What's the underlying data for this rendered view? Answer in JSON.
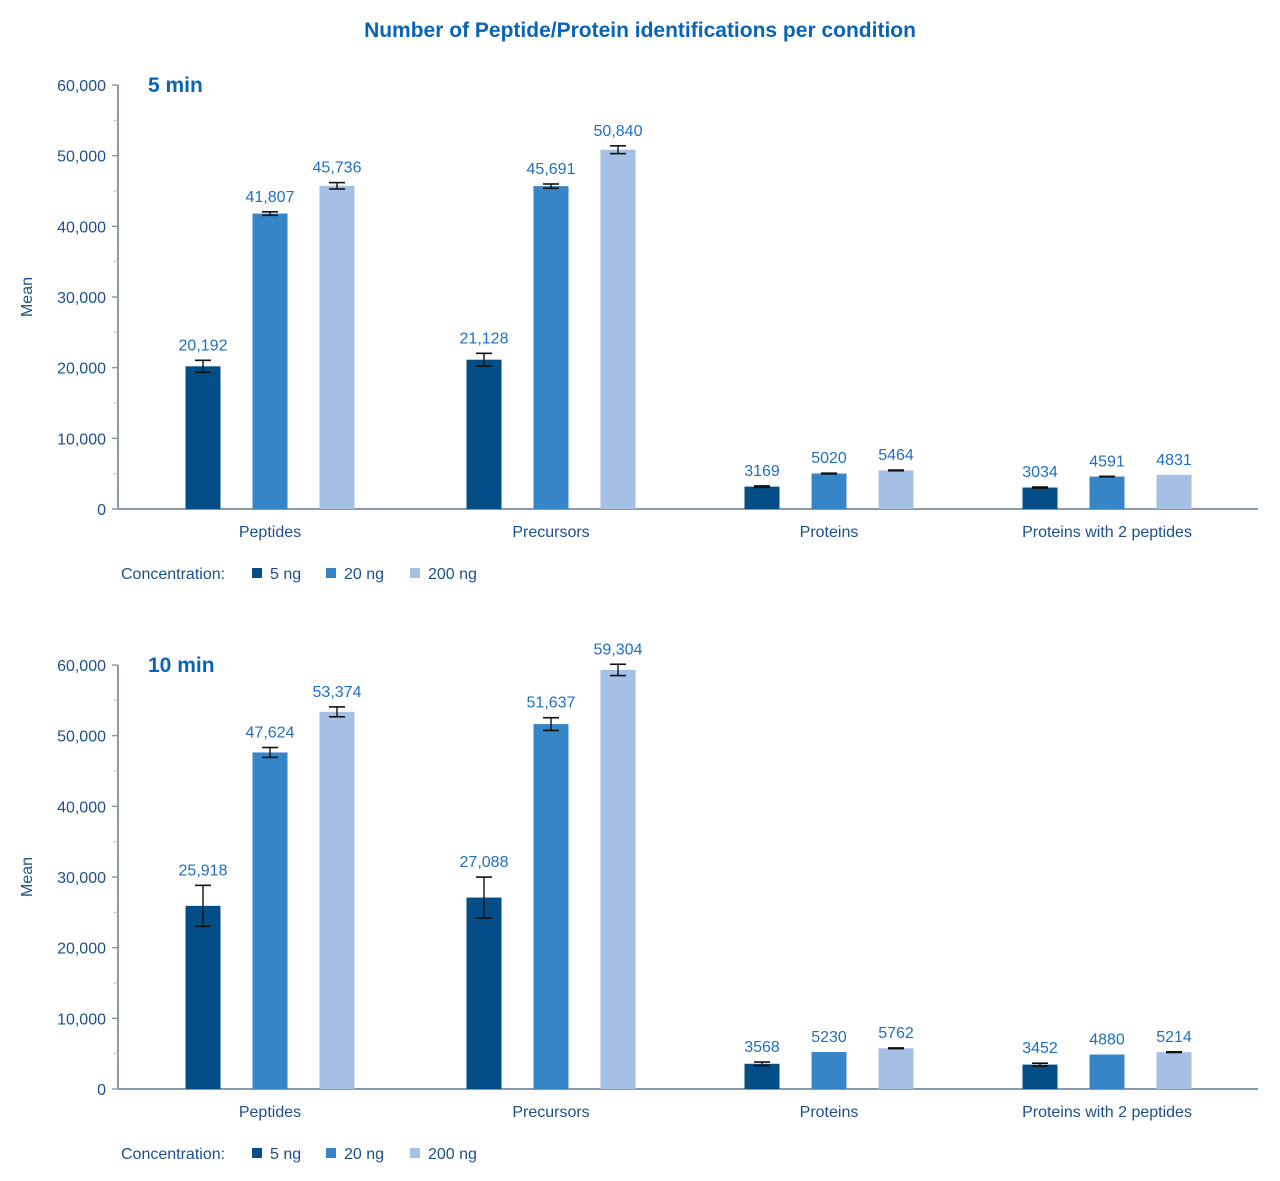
{
  "title": "Number of Peptide/Protein identifications per condition",
  "colors": {
    "5 ng": "#034e86",
    "20 ng": "#3585c7",
    "200 ng": "#a6bfe4",
    "axis": "#8a9aa8",
    "error": "#111111"
  },
  "chart_data": [
    {
      "type": "bar",
      "title": "5 min",
      "xlabel": "",
      "ylabel": "Mean",
      "ylim": [
        0,
        60000
      ],
      "yticks": [
        0,
        10000,
        20000,
        30000,
        40000,
        50000,
        60000
      ],
      "ytick_labels": [
        "0",
        "10,000",
        "20,000",
        "30,000",
        "40,000",
        "50,000",
        "60,000"
      ],
      "categories": [
        "Peptides",
        "Precursors",
        "Proteins",
        "Proteins with 2 peptides"
      ],
      "legend_title": "Concentration:",
      "legend_position": "bottom-left",
      "grid": false,
      "series": [
        {
          "name": "5 ng",
          "values": [
            20192,
            21128,
            3169,
            3034
          ],
          "labels": [
            "20,192",
            "21,128",
            "3169",
            "3034"
          ],
          "errors": [
            850,
            900,
            100,
            80
          ]
        },
        {
          "name": "20 ng",
          "values": [
            41807,
            45691,
            5020,
            4591
          ],
          "labels": [
            "41,807",
            "45,691",
            "5020",
            "4591"
          ],
          "errors": [
            250,
            300,
            50,
            30
          ]
        },
        {
          "name": "200 ng",
          "values": [
            45736,
            50840,
            5464,
            4831
          ],
          "labels": [
            "45,736",
            "50,840",
            "5464",
            "4831"
          ],
          "errors": [
            450,
            550,
            50,
            0
          ]
        }
      ]
    },
    {
      "type": "bar",
      "title": "10 min",
      "xlabel": "",
      "ylabel": "Mean",
      "ylim": [
        0,
        60000
      ],
      "yticks": [
        0,
        10000,
        20000,
        30000,
        40000,
        50000,
        60000
      ],
      "ytick_labels": [
        "0",
        "10,000",
        "20,000",
        "30,000",
        "40,000",
        "50,000",
        "60,000"
      ],
      "categories": [
        "Peptides",
        "Precursors",
        "Proteins",
        "Proteins with 2 peptides"
      ],
      "legend_title": "Concentration:",
      "legend_position": "bottom-left",
      "grid": false,
      "series": [
        {
          "name": "5 ng",
          "values": [
            25918,
            27088,
            3568,
            3452
          ],
          "labels": [
            "25,918",
            "27,088",
            "3568",
            "3452"
          ],
          "errors": [
            2900,
            2900,
            250,
            200
          ]
        },
        {
          "name": "20 ng",
          "values": [
            47624,
            51637,
            5230,
            4880
          ],
          "labels": [
            "47,624",
            "51,637",
            "5230",
            "4880"
          ],
          "errors": [
            700,
            900,
            0,
            0
          ]
        },
        {
          "name": "200 ng",
          "values": [
            53374,
            59304,
            5762,
            5214
          ],
          "labels": [
            "53,374",
            "59,304",
            "5762",
            "5214"
          ],
          "errors": [
            700,
            800,
            50,
            50
          ]
        }
      ]
    }
  ]
}
